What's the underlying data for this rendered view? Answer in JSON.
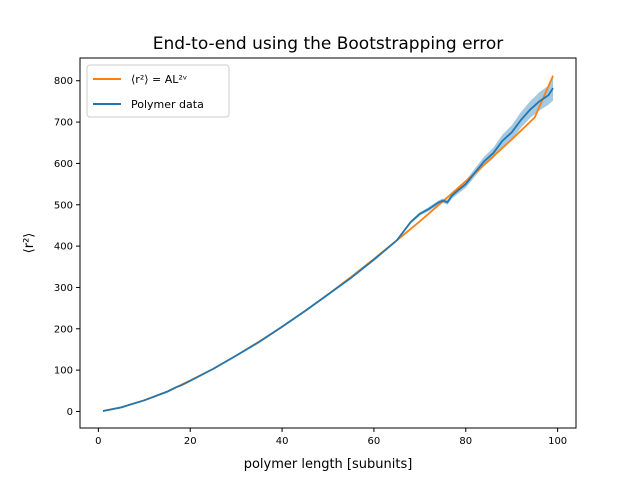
{
  "chart_data": {
    "type": "line",
    "title": "End-to-end using the Bootstrapping error",
    "xlabel": "polymer length [subunits]",
    "ylabel": "⟨r²⟩",
    "xlim": [
      -4,
      104
    ],
    "ylim": [
      -40,
      855
    ],
    "xticks": [
      0,
      20,
      40,
      60,
      80,
      100
    ],
    "yticks": [
      0,
      100,
      200,
      300,
      400,
      500,
      600,
      700,
      800
    ],
    "grid": false,
    "legend_position": "top-left",
    "colors": {
      "fit": "#ff7f0e",
      "data": "#1f77b4",
      "band": "#1f77b4"
    },
    "series": [
      {
        "name": "⟨r²⟩ = AL²ᵛ",
        "kind": "fit",
        "x": [
          1,
          5,
          10,
          15,
          20,
          25,
          30,
          35,
          40,
          45,
          50,
          55,
          60,
          65,
          70,
          75,
          80,
          85,
          90,
          95,
          99
        ],
        "y": [
          1,
          10,
          27,
          48,
          75,
          103,
          135,
          169,
          205,
          243,
          283,
          325,
          369,
          414,
          460,
          508,
          557,
          607,
          658,
          711,
          812
        ]
      },
      {
        "name": "Polymer data",
        "kind": "data",
        "x": [
          1,
          5,
          10,
          15,
          17,
          18,
          20,
          25,
          30,
          35,
          40,
          45,
          50,
          55,
          60,
          65,
          68,
          70,
          72,
          74,
          75,
          76,
          77,
          78,
          80,
          82,
          84,
          86,
          88,
          90,
          92,
          94,
          96,
          98,
          99
        ],
        "y": [
          1,
          10,
          27,
          48,
          59,
          63,
          74,
          103,
          135,
          168,
          205,
          243,
          283,
          323,
          367,
          414,
          458,
          478,
          490,
          505,
          510,
          506,
          522,
          532,
          550,
          578,
          605,
          625,
          655,
          675,
          705,
          730,
          750,
          765,
          782
        ],
        "band_lower": [
          1,
          10,
          27,
          48,
          59,
          63,
          74,
          103,
          134,
          167,
          204,
          241,
          281,
          321,
          365,
          411,
          454,
          474,
          485,
          500,
          505,
          500,
          515,
          524,
          541,
          568,
          594,
          612,
          640,
          658,
          686,
          710,
          728,
          742,
          752
        ],
        "band_upper": [
          1,
          10,
          27,
          48,
          59,
          63,
          74,
          104,
          136,
          169,
          206,
          245,
          285,
          325,
          369,
          417,
          462,
          482,
          495,
          510,
          515,
          512,
          529,
          540,
          559,
          588,
          616,
          638,
          670,
          692,
          724,
          750,
          772,
          788,
          812
        ]
      }
    ]
  }
}
